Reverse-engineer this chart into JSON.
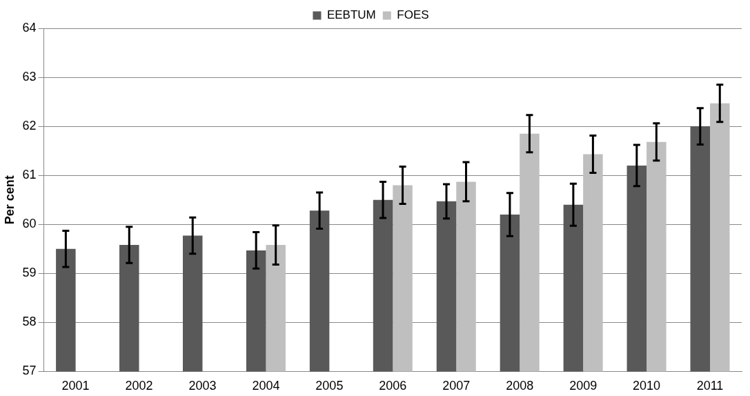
{
  "chart_data": {
    "type": "bar",
    "ylabel": "Per cent",
    "categories": [
      "2001",
      "2002",
      "2003",
      "2004",
      "2005",
      "2006",
      "2007",
      "2008",
      "2009",
      "2010",
      "2011"
    ],
    "series": [
      {
        "name": "EEBTUM",
        "color": "#595959",
        "values": [
          59.5,
          59.58,
          59.77,
          59.47,
          60.28,
          60.5,
          60.47,
          60.2,
          60.4,
          61.2,
          62.0
        ],
        "errors": [
          0.37,
          0.37,
          0.37,
          0.37,
          0.37,
          0.37,
          0.35,
          0.44,
          0.43,
          0.42,
          0.37
        ]
      },
      {
        "name": "FOES",
        "color": "#bfbfbf",
        "values": [
          null,
          null,
          null,
          59.58,
          null,
          60.8,
          60.87,
          61.85,
          61.43,
          61.68,
          62.47
        ],
        "errors": [
          null,
          null,
          null,
          0.4,
          null,
          0.38,
          0.4,
          0.38,
          0.38,
          0.38,
          0.38
        ]
      }
    ],
    "ylim": [
      57,
      64
    ],
    "yticks": [
      57,
      58,
      59,
      60,
      61,
      62,
      63,
      64
    ],
    "grid": "y",
    "legend": "top"
  }
}
